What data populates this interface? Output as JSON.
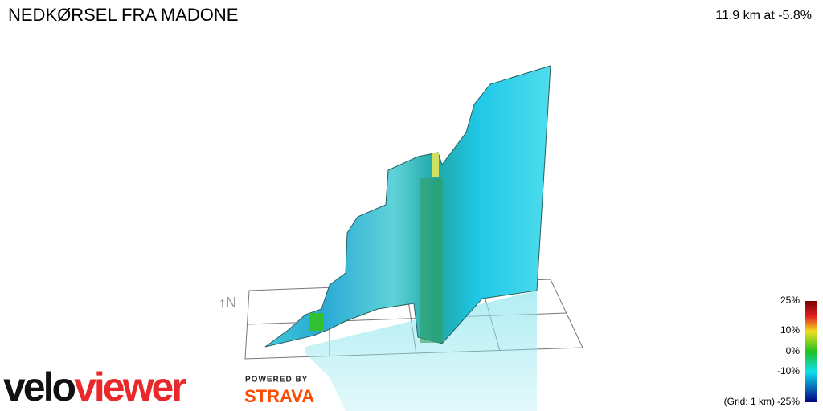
{
  "header": {
    "title": "NEDKØRSEL FRA MADONE",
    "stat": "11.9 km at -5.8%"
  },
  "compass": "↑N",
  "legend": {
    "labels": [
      "25%",
      "10%",
      "0%",
      "-10%",
      "-25%"
    ],
    "grid_note": "(Grid: 1 km)"
  },
  "logo": {
    "part1": "velo",
    "part2": "viewer",
    "powered": "POWERED BY",
    "strava": "STRAVA"
  }
}
